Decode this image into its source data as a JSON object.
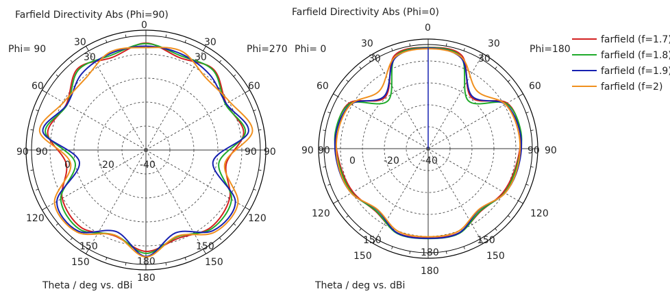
{
  "chart_data": [
    {
      "type": "polar-line",
      "title": "Farfield Directivity Abs (Phi=90)",
      "footer": "Theta / deg vs. dBi",
      "left_label": "Phi= 90",
      "right_label": "Phi=270",
      "angle_ticks_upper": [
        "0",
        "30",
        "30",
        "60",
        "60",
        "90",
        "90"
      ],
      "angle_ticks": [
        "30",
        "30",
        "60",
        "60",
        "90",
        "90",
        "120",
        "120",
        "150",
        "150",
        "150",
        "150",
        "180",
        "180"
      ],
      "radial_ticks": [
        "0",
        "-20",
        "-40"
      ],
      "r_range_dBi": [
        -40,
        10
      ],
      "series_theta_deg": [
        0,
        20,
        40,
        60,
        80,
        100,
        120,
        140,
        160,
        180,
        200,
        220,
        240,
        260,
        280,
        300,
        320,
        340,
        360
      ],
      "series": [
        {
          "name": "farfield (f=1.7)",
          "values": [
            4.6,
            1.0,
            3.9,
            -1.3,
            1.4,
            -6.0,
            0.3,
            2.1,
            -0.8,
            2.3,
            -1.9,
            2.1,
            0.3,
            -6.3,
            1.6,
            -1.7,
            4.3,
            1.1,
            4.6
          ]
        },
        {
          "name": "farfield (f=1.8)",
          "values": [
            4.4,
            1.9,
            3.5,
            -1.7,
            2.1,
            -9.1,
            1.2,
            2.8,
            -1.5,
            3.1,
            -2.2,
            3.1,
            1.0,
            -10.0,
            2.6,
            -2.1,
            3.7,
            2.1,
            4.4
          ]
        },
        {
          "name": "farfield (f=1.9)",
          "values": [
            3.3,
            2.7,
            1.2,
            -1.3,
            3.4,
            -11.6,
            3.1,
            3.8,
            -3.3,
            4.4,
            -3.8,
            4.1,
            2.9,
            -11.8,
            3.6,
            -2.0,
            1.6,
            2.9,
            3.3
          ]
        },
        {
          "name": "farfield (f=2)",
          "values": [
            2.7,
            3.8,
            -0.9,
            0.3,
            5.1,
            -6.6,
            4.3,
            4.7,
            -1.8,
            4.6,
            -2.2,
            4.7,
            4.0,
            -8.1,
            5.0,
            -0.3,
            -0.9,
            3.5,
            2.7
          ]
        }
      ]
    },
    {
      "type": "polar-line",
      "title": "Farfield Directivity Abs (Phi=0)",
      "footer": "Theta / deg vs. dBi",
      "left_label": "Phi=  0",
      "right_label": "Phi=180",
      "angle_ticks_upper": [
        "0",
        "30",
        "30",
        "60",
        "60",
        "90",
        "90"
      ],
      "angle_ticks": [
        "30",
        "30",
        "60",
        "60",
        "90",
        "90",
        "120",
        "120",
        "150",
        "150",
        "150",
        "150",
        "180",
        "180"
      ],
      "radial_ticks": [
        "0",
        "-20",
        "-40"
      ],
      "r_range_dBi": [
        -40,
        10
      ],
      "series_theta_deg": [
        0,
        20,
        40,
        60,
        80,
        100,
        120,
        140,
        160,
        180,
        200,
        220,
        240,
        260,
        280,
        300,
        320,
        340,
        360
      ],
      "series": [
        {
          "name": "farfield (f=1.7)",
          "values": [
            6.2,
            5.1,
            -9.4,
            1.6,
            2.6,
            0.9,
            -0.4,
            -2.7,
            0.9,
            0.8,
            0.9,
            -2.7,
            -0.4,
            0.9,
            2.6,
            1.6,
            -9.4,
            5.1,
            6.2
          ]
        },
        {
          "name": "farfield (f=1.8)",
          "values": [
            6.1,
            4.3,
            -11.5,
            1.1,
            3.0,
            1.3,
            0.2,
            -3.0,
            1.2,
            1.0,
            1.2,
            -3.0,
            0.2,
            1.3,
            3.0,
            1.1,
            -11.5,
            4.3,
            6.1
          ]
        },
        {
          "name": "farfield (f=1.9)",
          "values": [
            5.9,
            4.0,
            -8.8,
            0.6,
            2.6,
            2.0,
            0.5,
            -3.7,
            1.0,
            0.9,
            1.0,
            -3.7,
            0.5,
            2.0,
            2.6,
            0.6,
            -8.8,
            4.0,
            5.9
          ]
        },
        {
          "name": "farfield (f=2)",
          "values": [
            5.6,
            4.4,
            -5.5,
            0.6,
            1.9,
            1.7,
            0.5,
            -3.9,
            0.1,
            0.2,
            0.1,
            -3.9,
            0.5,
            1.7,
            1.9,
            0.6,
            -5.5,
            4.4,
            5.6
          ]
        }
      ]
    }
  ],
  "legend": {
    "placement": "top-right",
    "items": [
      {
        "label": "farfield (f=1.7)",
        "color": "#d22020"
      },
      {
        "label": "farfield (f=1.8)",
        "color": "#1faa2a"
      },
      {
        "label": "farfield (f=1.9)",
        "color": "#1620b0"
      },
      {
        "label": "farfield (f=2)",
        "color": "#f0901e"
      }
    ]
  }
}
